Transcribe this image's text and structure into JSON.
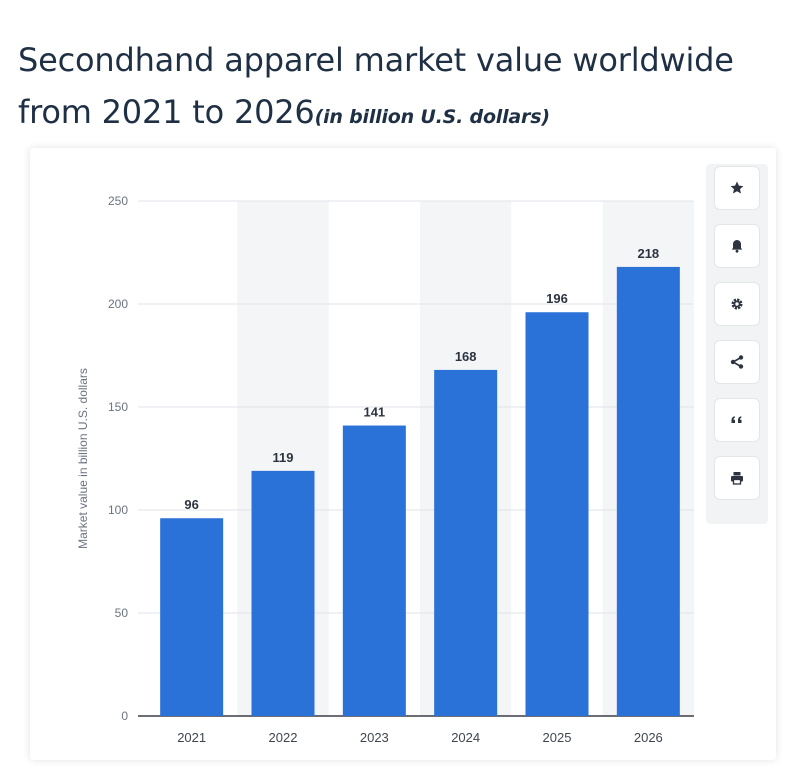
{
  "title": {
    "main": "Secondhand apparel market value worldwide from 2021 to 2026",
    "subtitle": "(in billion U.S. dollars)"
  },
  "toolbar": {
    "icons": [
      "star-icon",
      "bell-icon",
      "gear-icon",
      "share-icon",
      "quote-icon",
      "print-icon"
    ]
  },
  "colors": {
    "bar": "#2a72d8",
    "band": "#f4f5f7",
    "grid": "#dfe3e8",
    "axis_text": "#6b7280",
    "value_text": "#2d3440"
  },
  "chart_data": {
    "type": "bar",
    "categories": [
      "2021",
      "2022",
      "2023",
      "2024",
      "2025",
      "2026"
    ],
    "values": [
      96,
      119,
      141,
      168,
      196,
      218
    ],
    "data_labels": [
      "96",
      "119",
      "141",
      "168",
      "196",
      "218"
    ],
    "title": "Secondhand apparel market value worldwide from 2021 to 2026",
    "xlabel": "",
    "ylabel": "Market value in billion U.S. dollars",
    "ylim": [
      0,
      250
    ],
    "yticks": [
      0,
      50,
      100,
      150,
      200,
      250
    ],
    "ytick_labels": [
      "0",
      "50",
      "100",
      "150",
      "200",
      "250"
    ],
    "grid": true,
    "legend": "none"
  }
}
